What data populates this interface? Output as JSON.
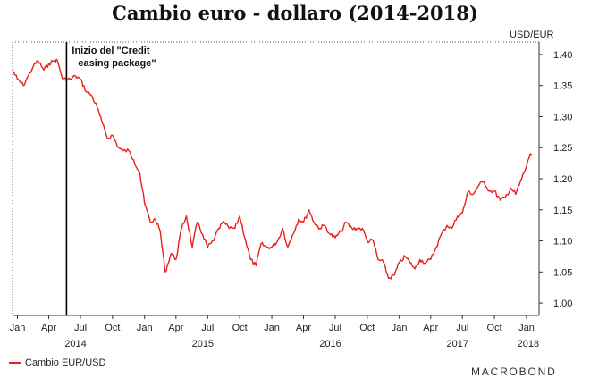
{
  "chart_data": {
    "type": "line",
    "title": "Cambio euro - dollaro (2014-2018)",
    "unit_label": "USD/EUR",
    "ylim": [
      0.98,
      1.42
    ],
    "yticks": [
      1.0,
      1.05,
      1.1,
      1.15,
      1.2,
      1.25,
      1.3,
      1.35,
      1.4
    ],
    "ytick_labels": [
      "1.00",
      "1.05",
      "1.10",
      "1.15",
      "1.20",
      "1.25",
      "1.30",
      "1.35",
      "1.40"
    ],
    "xlim": [
      "2014-01-01",
      "2018-02-20"
    ],
    "month_ticks": [
      {
        "date": "2014-01-15",
        "label": "Jan"
      },
      {
        "date": "2014-04-15",
        "label": "Apr"
      },
      {
        "date": "2014-07-15",
        "label": "Jul"
      },
      {
        "date": "2014-10-15",
        "label": "Oct"
      },
      {
        "date": "2015-01-15",
        "label": "Jan"
      },
      {
        "date": "2015-04-15",
        "label": "Apr"
      },
      {
        "date": "2015-07-15",
        "label": "Jul"
      },
      {
        "date": "2015-10-15",
        "label": "Oct"
      },
      {
        "date": "2016-01-15",
        "label": "Jan"
      },
      {
        "date": "2016-04-15",
        "label": "Apr"
      },
      {
        "date": "2016-07-15",
        "label": "Jul"
      },
      {
        "date": "2016-10-15",
        "label": "Oct"
      },
      {
        "date": "2017-01-15",
        "label": "Jan"
      },
      {
        "date": "2017-04-15",
        "label": "Apr"
      },
      {
        "date": "2017-07-15",
        "label": "Jul"
      },
      {
        "date": "2017-10-15",
        "label": "Oct"
      },
      {
        "date": "2018-01-15",
        "label": "Jan"
      }
    ],
    "year_labels": [
      {
        "date": "2014-07-01",
        "label": "2014"
      },
      {
        "date": "2015-07-01",
        "label": "2015"
      },
      {
        "date": "2016-07-01",
        "label": "2016"
      },
      {
        "date": "2017-07-01",
        "label": "2017"
      },
      {
        "date": "2018-01-20",
        "label": "2018"
      }
    ],
    "series": [
      {
        "name": "Cambio EUR/USD",
        "color": "#e8201b",
        "points": [
          [
            "2014-01-01",
            1.375
          ],
          [
            "2014-01-15",
            1.36
          ],
          [
            "2014-02-01",
            1.35
          ],
          [
            "2014-02-15",
            1.365
          ],
          [
            "2014-03-01",
            1.38
          ],
          [
            "2014-03-15",
            1.39
          ],
          [
            "2014-04-01",
            1.375
          ],
          [
            "2014-04-15",
            1.385
          ],
          [
            "2014-05-01",
            1.39
          ],
          [
            "2014-05-10",
            1.39
          ],
          [
            "2014-05-25",
            1.36
          ],
          [
            "2014-06-15",
            1.36
          ],
          [
            "2014-07-01",
            1.365
          ],
          [
            "2014-07-15",
            1.36
          ],
          [
            "2014-08-01",
            1.34
          ],
          [
            "2014-08-15",
            1.335
          ],
          [
            "2014-09-01",
            1.315
          ],
          [
            "2014-09-15",
            1.29
          ],
          [
            "2014-10-01",
            1.265
          ],
          [
            "2014-10-15",
            1.27
          ],
          [
            "2014-11-01",
            1.25
          ],
          [
            "2014-11-15",
            1.245
          ],
          [
            "2014-12-01",
            1.245
          ],
          [
            "2014-12-15",
            1.23
          ],
          [
            "2015-01-01",
            1.21
          ],
          [
            "2015-01-15",
            1.16
          ],
          [
            "2015-02-01",
            1.13
          ],
          [
            "2015-02-15",
            1.135
          ],
          [
            "2015-03-01",
            1.115
          ],
          [
            "2015-03-15",
            1.05
          ],
          [
            "2015-04-01",
            1.08
          ],
          [
            "2015-04-15",
            1.07
          ],
          [
            "2015-05-01",
            1.12
          ],
          [
            "2015-05-15",
            1.14
          ],
          [
            "2015-06-01",
            1.09
          ],
          [
            "2015-06-15",
            1.13
          ],
          [
            "2015-07-01",
            1.11
          ],
          [
            "2015-07-15",
            1.09
          ],
          [
            "2015-08-01",
            1.1
          ],
          [
            "2015-08-15",
            1.12
          ],
          [
            "2015-09-01",
            1.13
          ],
          [
            "2015-09-15",
            1.12
          ],
          [
            "2015-10-01",
            1.12
          ],
          [
            "2015-10-15",
            1.14
          ],
          [
            "2015-11-01",
            1.1
          ],
          [
            "2015-11-15",
            1.07
          ],
          [
            "2015-12-01",
            1.06
          ],
          [
            "2015-12-15",
            1.095
          ],
          [
            "2016-01-01",
            1.09
          ],
          [
            "2016-01-15",
            1.09
          ],
          [
            "2016-02-01",
            1.1
          ],
          [
            "2016-02-15",
            1.12
          ],
          [
            "2016-03-01",
            1.09
          ],
          [
            "2016-03-15",
            1.11
          ],
          [
            "2016-04-01",
            1.135
          ],
          [
            "2016-04-15",
            1.13
          ],
          [
            "2016-05-01",
            1.15
          ],
          [
            "2016-05-15",
            1.13
          ],
          [
            "2016-06-01",
            1.12
          ],
          [
            "2016-06-15",
            1.125
          ],
          [
            "2016-07-01",
            1.11
          ],
          [
            "2016-07-15",
            1.105
          ],
          [
            "2016-08-01",
            1.115
          ],
          [
            "2016-08-15",
            1.13
          ],
          [
            "2016-09-01",
            1.12
          ],
          [
            "2016-09-15",
            1.12
          ],
          [
            "2016-10-01",
            1.12
          ],
          [
            "2016-10-15",
            1.1
          ],
          [
            "2016-11-01",
            1.1
          ],
          [
            "2016-11-15",
            1.07
          ],
          [
            "2016-12-01",
            1.065
          ],
          [
            "2016-12-15",
            1.04
          ],
          [
            "2017-01-01",
            1.045
          ],
          [
            "2017-01-15",
            1.065
          ],
          [
            "2017-02-01",
            1.075
          ],
          [
            "2017-02-15",
            1.065
          ],
          [
            "2017-03-01",
            1.055
          ],
          [
            "2017-03-15",
            1.07
          ],
          [
            "2017-04-01",
            1.065
          ],
          [
            "2017-04-15",
            1.07
          ],
          [
            "2017-05-01",
            1.09
          ],
          [
            "2017-05-15",
            1.11
          ],
          [
            "2017-06-01",
            1.125
          ],
          [
            "2017-06-15",
            1.12
          ],
          [
            "2017-07-01",
            1.14
          ],
          [
            "2017-07-15",
            1.145
          ],
          [
            "2017-08-01",
            1.18
          ],
          [
            "2017-08-15",
            1.175
          ],
          [
            "2017-09-01",
            1.19
          ],
          [
            "2017-09-15",
            1.195
          ],
          [
            "2017-10-01",
            1.18
          ],
          [
            "2017-10-15",
            1.18
          ],
          [
            "2017-11-01",
            1.165
          ],
          [
            "2017-11-15",
            1.17
          ],
          [
            "2017-12-01",
            1.185
          ],
          [
            "2017-12-15",
            1.175
          ],
          [
            "2018-01-01",
            1.2
          ],
          [
            "2018-01-15",
            1.22
          ],
          [
            "2018-01-25",
            1.24
          ],
          [
            "2018-01-30",
            1.24
          ]
        ]
      }
    ],
    "annotation": {
      "date": "2014-06-05",
      "label_line1": "Inizio del \"Credit",
      "label_line2": "easing package\""
    },
    "grid": false,
    "legend_position": "bottom-left"
  },
  "legend": {
    "label": "Cambio EUR/USD"
  },
  "brand": {
    "text": "MACROBOND"
  }
}
